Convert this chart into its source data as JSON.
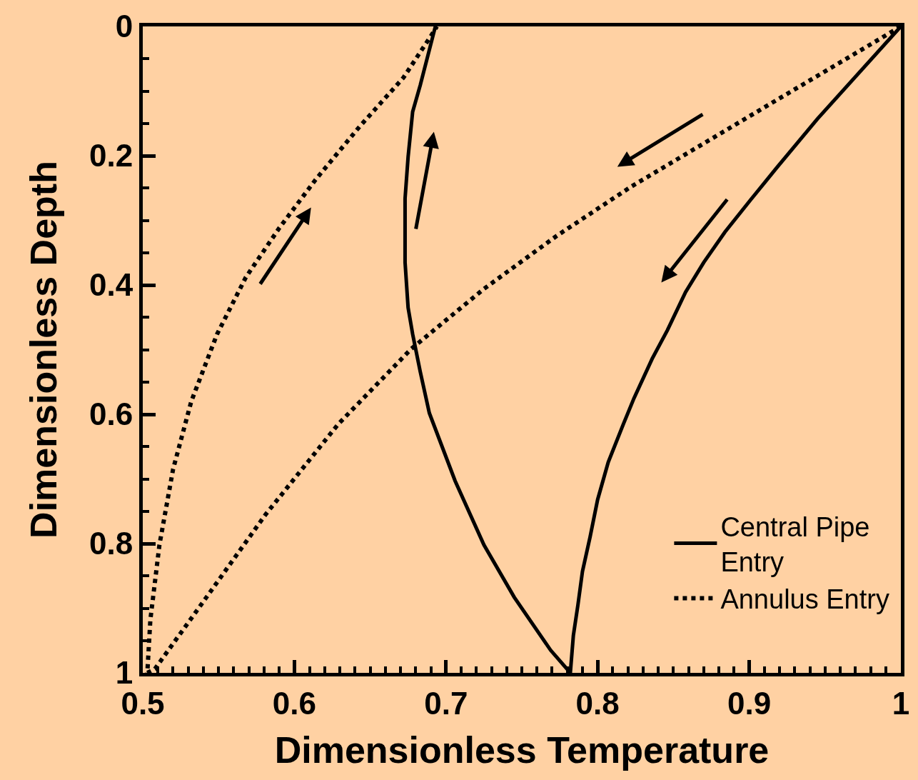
{
  "chart_data": {
    "type": "line",
    "xlabel": "Dimensionless Temperature",
    "ylabel": "Dimensionless Depth",
    "xlim": [
      0.5,
      1
    ],
    "ylim": [
      1,
      0
    ],
    "xticks": [
      0.5,
      0.6,
      0.7,
      0.8,
      0.9,
      1
    ],
    "yticks": [
      0,
      0.2,
      0.4,
      0.6,
      0.8,
      1
    ],
    "grid": false,
    "legend": "bottom right",
    "marker": "none",
    "series": [
      {
        "name": "Central Pipe Entry",
        "color": "#000000",
        "line_style": "solid",
        "x": [
          1.0,
          0.945,
          0.918,
          0.901,
          0.884,
          0.87,
          0.858,
          0.846,
          0.836,
          0.824,
          0.817,
          0.807,
          0.8,
          0.795,
          0.79,
          0.787,
          0.784,
          0.782,
          0.769,
          0.745,
          0.725,
          0.706,
          0.689,
          0.683,
          0.678,
          0.675,
          0.673,
          0.673,
          0.675,
          0.678,
          0.683,
          0.693
        ],
        "values": [
          0,
          0.143,
          0.219,
          0.268,
          0.318,
          0.365,
          0.411,
          0.47,
          0.514,
          0.575,
          0.615,
          0.674,
          0.732,
          0.79,
          0.843,
          0.895,
          0.942,
          1.0,
          0.965,
          0.883,
          0.802,
          0.703,
          0.598,
          0.534,
          0.476,
          0.435,
          0.365,
          0.266,
          0.202,
          0.132,
          0.091,
          0
        ]
      },
      {
        "name": "Annulus Entry",
        "color": "#000000",
        "line_style": "dotted",
        "x": [
          1.0,
          0.918,
          0.822,
          0.773,
          0.725,
          0.677,
          0.629,
          0.581,
          0.542,
          0.508,
          0.503,
          0.505,
          0.511,
          0.52,
          0.532,
          0.549,
          0.568,
          0.59,
          0.614,
          0.643,
          0.672,
          0.69,
          0.694
        ],
        "values": [
          0,
          0.114,
          0.248,
          0.324,
          0.406,
          0.499,
          0.615,
          0.755,
          0.883,
          0.994,
          1.0,
          0.918,
          0.802,
          0.685,
          0.58,
          0.476,
          0.388,
          0.312,
          0.237,
          0.155,
          0.079,
          0.015,
          0
        ]
      }
    ]
  }
}
